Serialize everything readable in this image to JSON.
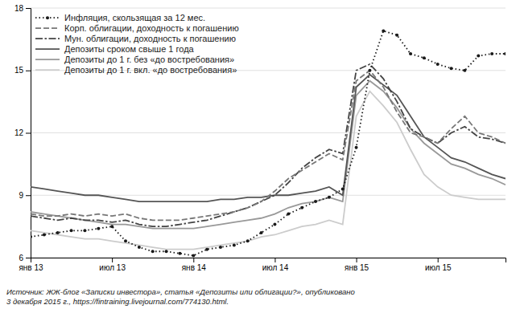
{
  "chart_data": {
    "type": "line",
    "source": "Источник: ЖЖ-блог «Записки инвестора», статья «Депозиты или облигации?», опубликовано\n3 декабря 2015 г., https://fintraining.livejournal.com/774130.html.",
    "categories": [
      "янв 13",
      null,
      null,
      null,
      null,
      null,
      "июл 13",
      null,
      null,
      null,
      null,
      null,
      "янв 14",
      null,
      null,
      null,
      null,
      null,
      "июл 14",
      null,
      null,
      null,
      null,
      null,
      "янв 15",
      null,
      null,
      null,
      null,
      null,
      "июл 15",
      null,
      null,
      null,
      null,
      null
    ],
    "ylim": [
      6,
      18
    ],
    "yticks": [
      6,
      9,
      12,
      15,
      18
    ],
    "grid": true,
    "legend": "upper left",
    "series": [
      {
        "name": "Инфляция, скользящая за 12 мес.",
        "color": "#1a1a1a",
        "line_style": "dotted",
        "marker": "circle",
        "values": [
          7.0,
          7.1,
          7.2,
          7.3,
          7.3,
          7.4,
          7.5,
          6.8,
          6.5,
          6.3,
          6.3,
          6.2,
          6.1,
          6.4,
          6.5,
          6.6,
          6.8,
          7.2,
          7.6,
          8.1,
          8.4,
          8.7,
          8.9,
          9.3,
          11.3,
          15.0,
          16.9,
          16.7,
          15.8,
          15.6,
          15.3,
          15.1,
          15.0,
          15.7,
          15.8,
          15.8
        ]
      },
      {
        "name": "Корп. облигации, доходность к погашению",
        "color": "#777777",
        "line_style": "dashed",
        "values": [
          8.1,
          8.0,
          8.0,
          8.1,
          8.0,
          8.1,
          8.0,
          8.1,
          7.9,
          7.8,
          7.8,
          7.8,
          7.9,
          8.0,
          8.1,
          8.2,
          8.4,
          8.7,
          9.2,
          9.8,
          10.2,
          10.6,
          11.0,
          10.7,
          14.5,
          15.0,
          14.2,
          13.0,
          12.0,
          11.8,
          11.5,
          12.2,
          12.8,
          12.0,
          11.8,
          11.5
        ]
      },
      {
        "name": "Мун. облигации, доходность к погашению",
        "color": "#444444",
        "line_style": "dashdot",
        "values": [
          8.0,
          7.9,
          7.8,
          7.9,
          7.8,
          7.8,
          7.7,
          7.8,
          7.6,
          7.5,
          7.5,
          7.6,
          7.7,
          7.8,
          8.0,
          8.2,
          8.4,
          8.7,
          9.0,
          9.6,
          10.3,
          10.8,
          11.2,
          11.0,
          15.0,
          15.3,
          14.6,
          13.5,
          12.2,
          11.8,
          11.5,
          12.0,
          12.3,
          11.8,
          11.7,
          11.5
        ]
      },
      {
        "name": "Депозиты сроком свыше 1 года",
        "color": "#555555",
        "line_style": "solid",
        "values": [
          9.4,
          9.3,
          9.2,
          9.1,
          9.0,
          9.0,
          8.9,
          8.8,
          8.7,
          8.7,
          8.7,
          8.7,
          8.7,
          8.7,
          8.8,
          8.8,
          8.9,
          8.9,
          9.0,
          9.0,
          9.1,
          9.2,
          9.4,
          9.0,
          14.2,
          14.8,
          14.3,
          13.8,
          12.8,
          11.8,
          11.3,
          10.8,
          10.6,
          10.3,
          10.0,
          9.8
        ]
      },
      {
        "name": "Депозиты до 1 г. без «до востребования»",
        "color": "#999999",
        "line_style": "solid",
        "values": [
          8.2,
          8.1,
          8.0,
          7.9,
          7.8,
          7.7,
          7.6,
          7.6,
          7.5,
          7.4,
          7.4,
          7.4,
          7.4,
          7.5,
          7.6,
          7.7,
          7.8,
          7.9,
          8.1,
          8.4,
          8.6,
          8.7,
          8.9,
          8.7,
          13.8,
          14.5,
          14.0,
          13.2,
          12.2,
          11.5,
          11.0,
          10.5,
          10.3,
          10.0,
          9.8,
          9.5
        ]
      },
      {
        "name": "Депозиты до 1 г. вкл. «до востребования»",
        "color": "#cccccc",
        "line_style": "solid",
        "values": [
          7.3,
          7.2,
          7.1,
          7.0,
          6.9,
          6.9,
          6.8,
          6.7,
          6.6,
          6.5,
          6.4,
          6.4,
          6.4,
          6.5,
          6.6,
          6.7,
          6.8,
          7.0,
          7.1,
          7.3,
          7.5,
          7.6,
          7.8,
          7.6,
          12.8,
          14.0,
          13.3,
          12.5,
          11.2,
          10.0,
          9.4,
          9.0,
          8.9,
          8.8,
          8.8,
          8.8
        ]
      }
    ]
  }
}
